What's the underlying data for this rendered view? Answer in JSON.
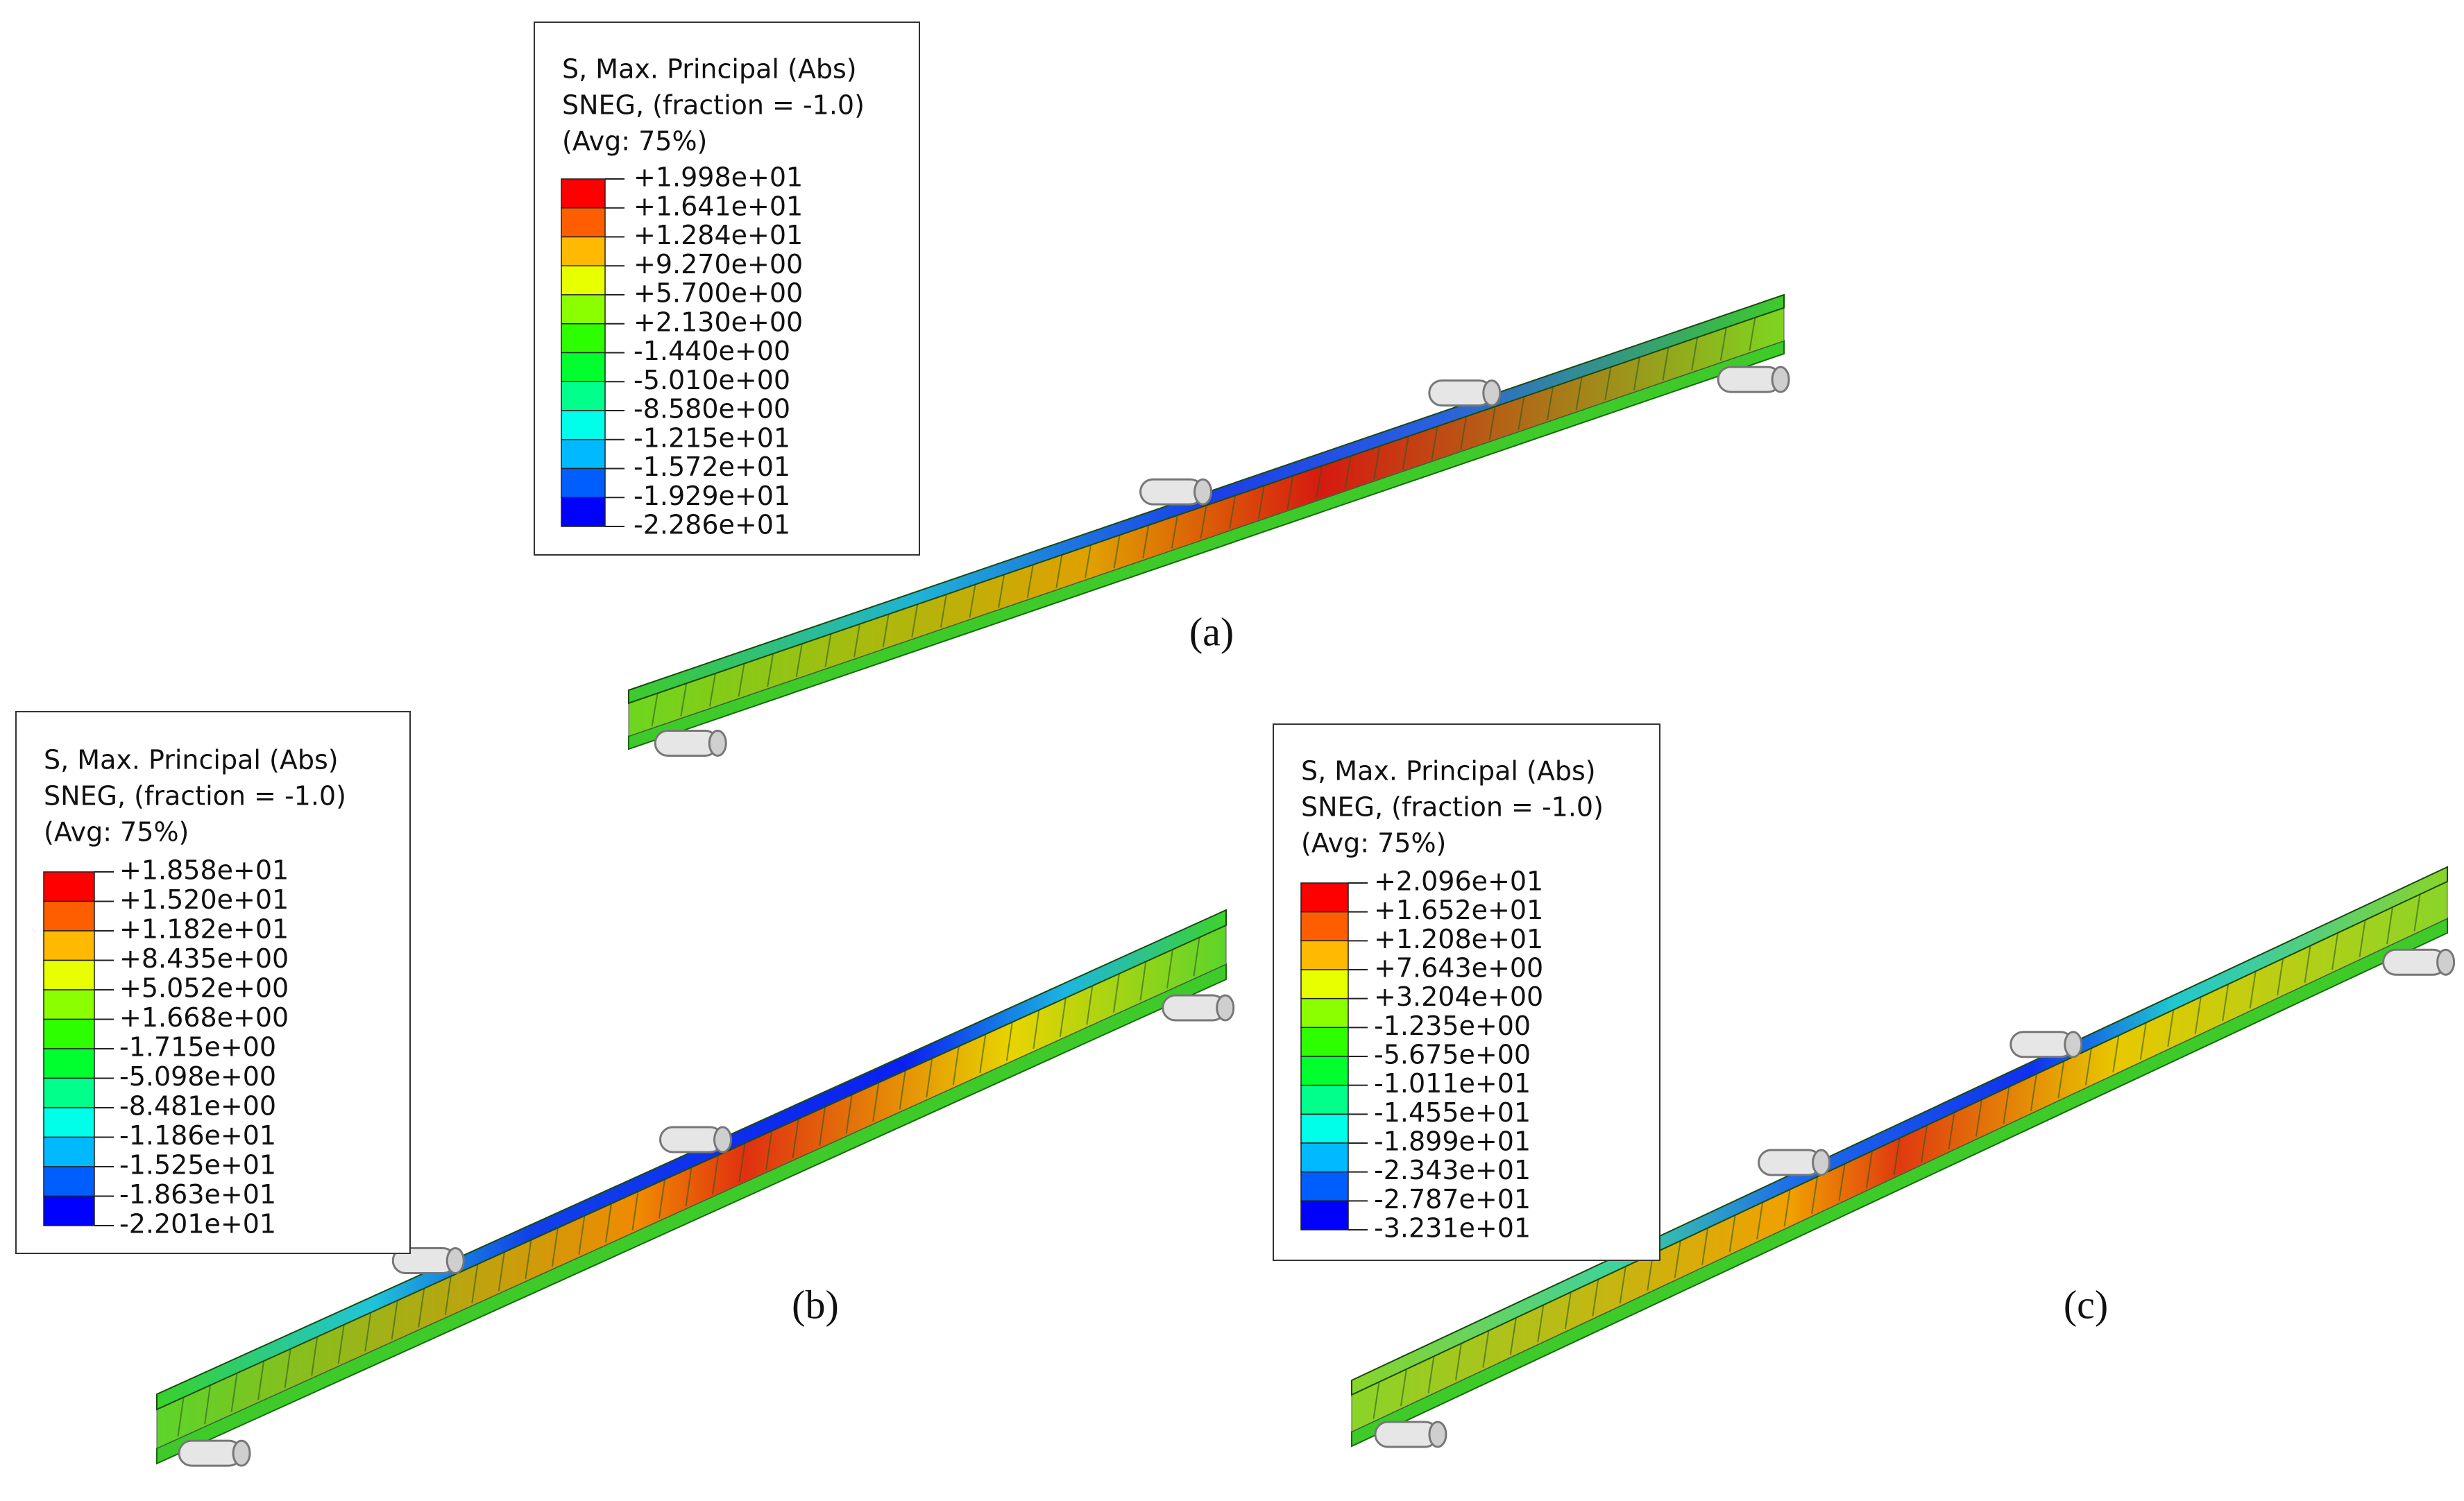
{
  "panels": [
    {
      "label": "(a)",
      "legend": {
        "title": [
          "S, Max. Principal (Abs)",
          "SNEG, (fraction = -1.0)",
          "(Avg: 75%)"
        ],
        "values": [
          "+1.998e+01",
          "+1.641e+01",
          "+1.284e+01",
          "+9.270e+00",
          "+5.700e+00",
          "+2.130e+00",
          "-1.440e+00",
          "-5.010e+00",
          "-8.580e+00",
          "-1.215e+01",
          "-1.572e+01",
          "-1.929e+01",
          "-2.286e+01"
        ]
      }
    },
    {
      "label": "(b)",
      "legend": {
        "title": [
          "S, Max. Principal (Abs)",
          "SNEG, (fraction = -1.0)",
          "(Avg: 75%)"
        ],
        "values": [
          "+1.858e+01",
          "+1.520e+01",
          "+1.182e+01",
          "+8.435e+00",
          "+5.052e+00",
          "+1.668e+00",
          "-1.715e+00",
          "-5.098e+00",
          "-8.481e+00",
          "-1.186e+01",
          "-1.525e+01",
          "-1.863e+01",
          "-2.201e+01"
        ]
      }
    },
    {
      "label": "(c)",
      "legend": {
        "title": [
          "S, Max. Principal (Abs)",
          "SNEG, (fraction = -1.0)",
          "(Avg: 75%)"
        ],
        "values": [
          "+2.096e+01",
          "+1.652e+01",
          "+1.208e+01",
          "+7.643e+00",
          "+3.204e+00",
          "-1.235e+00",
          "-5.675e+00",
          "-1.011e+01",
          "-1.455e+01",
          "-1.899e+01",
          "-2.343e+01",
          "-2.787e+01",
          "-3.231e+01"
        ]
      }
    }
  ]
}
